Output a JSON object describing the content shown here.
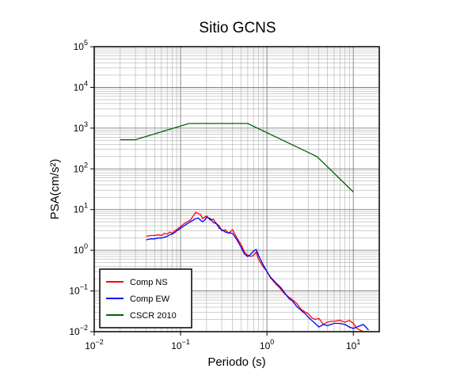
{
  "chart_data": {
    "type": "line",
    "title": "Sitio GCNS",
    "xlabel": "Periodo (s)",
    "ylabel": "PSA(cm/s²)",
    "xscale": "log",
    "yscale": "log",
    "xlim": [
      0.01,
      20
    ],
    "ylim": [
      0.01,
      100000
    ],
    "x_ticks": [
      {
        "base": "10",
        "exp": "−2"
      },
      {
        "base": "10",
        "exp": "−1"
      },
      {
        "base": "10",
        "exp": "0"
      },
      {
        "base": "10",
        "exp": "1"
      }
    ],
    "y_ticks": [
      {
        "base": "10",
        "exp": "−2"
      },
      {
        "base": "10",
        "exp": "−1"
      },
      {
        "base": "10",
        "exp": "0"
      },
      {
        "base": "10",
        "exp": "1"
      },
      {
        "base": "10",
        "exp": "2"
      },
      {
        "base": "10",
        "exp": "3"
      },
      {
        "base": "10",
        "exp": "4"
      },
      {
        "base": "10",
        "exp": "5"
      }
    ],
    "grid": true,
    "legend_position": "bottom-left",
    "series": [
      {
        "name": "Comp NS",
        "color": "#ff0000",
        "x": [
          0.04,
          0.045,
          0.05,
          0.055,
          0.06,
          0.065,
          0.07,
          0.075,
          0.08,
          0.085,
          0.09,
          0.095,
          0.1,
          0.11,
          0.12,
          0.13,
          0.14,
          0.15,
          0.16,
          0.17,
          0.18,
          0.19,
          0.2,
          0.22,
          0.24,
          0.26,
          0.28,
          0.3,
          0.33,
          0.36,
          0.4,
          0.45,
          0.5,
          0.55,
          0.6,
          0.65,
          0.7,
          0.75,
          0.8,
          0.9,
          1.0,
          1.1,
          1.2,
          1.3,
          1.4,
          1.5,
          1.6,
          1.8,
          2.0,
          2.2,
          2.5,
          2.8,
          3.0,
          3.3,
          3.6,
          4.0,
          4.5,
          5.0,
          5.5,
          6.0,
          7.0,
          8.0,
          9.0,
          10.0,
          11.0,
          12.0,
          13.0,
          14.0,
          15.0
        ],
        "values": [
          2.2,
          2.3,
          2.3,
          2.4,
          2.3,
          2.6,
          2.5,
          2.8,
          2.6,
          3.0,
          3.2,
          3.5,
          3.8,
          4.5,
          5.0,
          5.5,
          7.0,
          8.5,
          8.0,
          7.5,
          6.0,
          6.5,
          7.0,
          5.5,
          5.8,
          4.5,
          4.0,
          3.0,
          3.2,
          2.6,
          3.2,
          2.0,
          1.4,
          0.9,
          0.75,
          0.7,
          0.75,
          0.9,
          0.6,
          0.4,
          0.3,
          0.21,
          0.17,
          0.14,
          0.12,
          0.1,
          0.085,
          0.07,
          0.06,
          0.05,
          0.035,
          0.03,
          0.028,
          0.022,
          0.02,
          0.021,
          0.015,
          0.017,
          0.018,
          0.018,
          0.019,
          0.017,
          0.019,
          0.016,
          0.012,
          0.011,
          0.01,
          0.01,
          0.01
        ]
      },
      {
        "name": "Comp EW",
        "color": "#0000ff",
        "x": [
          0.04,
          0.045,
          0.05,
          0.055,
          0.06,
          0.065,
          0.07,
          0.075,
          0.08,
          0.085,
          0.09,
          0.095,
          0.1,
          0.11,
          0.12,
          0.13,
          0.14,
          0.15,
          0.16,
          0.17,
          0.18,
          0.19,
          0.2,
          0.22,
          0.24,
          0.26,
          0.28,
          0.3,
          0.33,
          0.36,
          0.4,
          0.45,
          0.5,
          0.55,
          0.6,
          0.65,
          0.7,
          0.75,
          0.8,
          0.9,
          1.0,
          1.1,
          1.2,
          1.3,
          1.4,
          1.5,
          1.6,
          1.8,
          2.0,
          2.2,
          2.5,
          2.8,
          3.0,
          3.3,
          3.6,
          4.0,
          4.5,
          5.0,
          5.5,
          6.0,
          7.0,
          8.0,
          9.0,
          10.0,
          11.0,
          12.0,
          13.0,
          14.0,
          15.0
        ],
        "values": [
          1.8,
          1.9,
          1.9,
          2.0,
          2.0,
          2.1,
          2.2,
          2.4,
          2.5,
          2.7,
          3.0,
          3.2,
          3.5,
          4.0,
          4.5,
          5.0,
          5.5,
          6.0,
          6.2,
          5.5,
          5.0,
          5.5,
          6.5,
          6.0,
          4.8,
          4.5,
          3.5,
          3.2,
          2.8,
          2.7,
          2.6,
          1.8,
          1.2,
          0.8,
          0.7,
          0.8,
          0.95,
          1.05,
          0.75,
          0.45,
          0.3,
          0.22,
          0.18,
          0.15,
          0.13,
          0.11,
          0.09,
          0.065,
          0.055,
          0.042,
          0.033,
          0.027,
          0.023,
          0.019,
          0.016,
          0.013,
          0.015,
          0.014,
          0.015,
          0.016,
          0.016,
          0.015,
          0.013,
          0.012,
          0.013,
          0.014,
          0.015,
          0.013,
          0.011
        ]
      },
      {
        "name": "CSCR 2010",
        "color": "#006400",
        "x": [
          0.02,
          0.03,
          0.125,
          0.6,
          3.8,
          10.0
        ],
        "values": [
          520,
          520,
          1300,
          1300,
          200,
          27
        ]
      }
    ]
  }
}
